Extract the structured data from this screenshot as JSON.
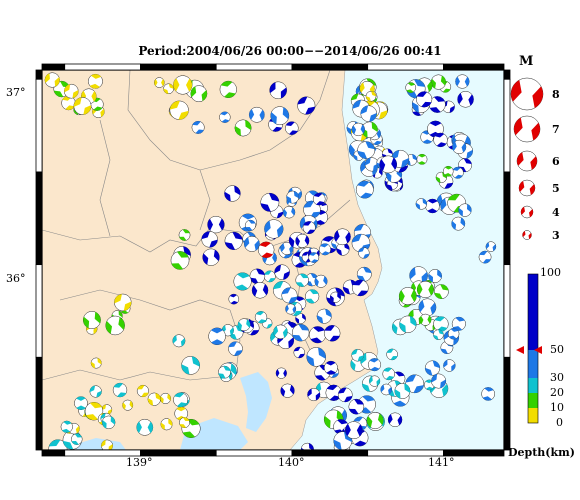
{
  "title": "Period:2004/06/26 00:00−−2014/06/26 00:41",
  "colors": {
    "land": "#fbe7cc",
    "sea": "#e6fbff",
    "bay": "#bfe6ff",
    "depth_0_10": "#f2dd00",
    "depth_10_20": "#35d100",
    "depth_20_30": "#10c2cf",
    "depth_30_50": "#1e78e6",
    "depth_50_100": "#0000c8",
    "magnitude_legend": "#e00000"
  },
  "axes": {
    "lon_ticks": [
      "139°",
      "140°",
      "141°"
    ],
    "lat_ticks": [
      "37°",
      "36°"
    ]
  },
  "magnitude_legend": {
    "header": "M",
    "labels": [
      "8",
      "7",
      "6",
      "5",
      "4",
      "3"
    ]
  },
  "depth_legend": {
    "ticks": [
      "100",
      "50",
      "30",
      "20",
      "10",
      "0"
    ],
    "unit": "Depth(km)"
  },
  "chart_data": {
    "type": "scatter",
    "title": "Period:2004/06/26 00:00−−2014/06/26 00:41",
    "xlabel": "",
    "ylabel": "",
    "xlim": [
      138.35,
      141.4
    ],
    "ylim": [
      35.0,
      37.05
    ],
    "x_ticks": [
      139,
      140,
      141
    ],
    "y_ticks": [
      36,
      37
    ],
    "depth_bins_km": [
      0,
      10,
      20,
      30,
      50,
      100
    ],
    "magnitude_scale": [
      3,
      4,
      5,
      6,
      7,
      8
    ],
    "highlight_event": {
      "lon": 139.83,
      "lat": 36.08
    },
    "clusters": [
      {
        "lon": 140.5,
        "lat": 36.75,
        "count": 26,
        "spread": [
          0.12,
          0.22
        ],
        "depths": [
          5,
          15,
          40
        ]
      },
      {
        "lon": 140.95,
        "lat": 36.75,
        "count": 22,
        "spread": [
          0.2,
          0.25
        ],
        "depths": [
          40,
          70,
          15
        ]
      },
      {
        "lon": 140.6,
        "lat": 36.5,
        "count": 18,
        "spread": [
          0.12,
          0.12
        ],
        "depths": [
          70,
          40
        ]
      },
      {
        "lon": 140.95,
        "lat": 36.45,
        "count": 10,
        "spread": [
          0.2,
          0.15
        ],
        "depths": [
          40,
          15,
          70
        ]
      },
      {
        "lon": 138.6,
        "lat": 36.9,
        "count": 10,
        "spread": [
          0.2,
          0.12
        ],
        "depths": [
          5,
          15
        ]
      },
      {
        "lon": 139.4,
        "lat": 36.85,
        "count": 12,
        "spread": [
          0.3,
          0.15
        ],
        "depths": [
          5,
          15,
          40
        ]
      },
      {
        "lon": 139.95,
        "lat": 36.85,
        "count": 6,
        "spread": [
          0.25,
          0.12
        ],
        "depths": [
          70,
          40
        ]
      },
      {
        "lon": 139.9,
        "lat": 36.2,
        "count": 30,
        "spread": [
          0.3,
          0.2
        ],
        "depths": [
          70,
          40
        ]
      },
      {
        "lon": 140.3,
        "lat": 36.05,
        "count": 18,
        "spread": [
          0.2,
          0.18
        ],
        "depths": [
          70,
          40
        ]
      },
      {
        "lon": 139.85,
        "lat": 35.8,
        "count": 18,
        "spread": [
          0.25,
          0.2
        ],
        "depths": [
          70,
          25
        ]
      },
      {
        "lon": 140.1,
        "lat": 35.55,
        "count": 24,
        "spread": [
          0.2,
          0.3
        ],
        "depths": [
          40,
          70,
          25
        ]
      },
      {
        "lon": 140.5,
        "lat": 35.35,
        "count": 16,
        "spread": [
          0.25,
          0.2
        ],
        "depths": [
          40,
          25,
          70
        ]
      },
      {
        "lon": 140.9,
        "lat": 35.8,
        "count": 14,
        "spread": [
          0.15,
          0.15
        ],
        "depths": [
          15,
          40
        ]
      },
      {
        "lon": 140.8,
        "lat": 35.5,
        "count": 12,
        "spread": [
          0.2,
          0.2
        ],
        "depths": [
          40,
          25
        ]
      },
      {
        "lon": 139.5,
        "lat": 35.55,
        "count": 10,
        "spread": [
          0.25,
          0.15
        ],
        "depths": [
          40,
          25
        ]
      },
      {
        "lon": 138.85,
        "lat": 35.35,
        "count": 12,
        "spread": [
          0.25,
          0.15
        ],
        "depths": [
          15,
          25,
          5
        ]
      },
      {
        "lon": 138.6,
        "lat": 35.1,
        "count": 10,
        "spread": [
          0.2,
          0.1
        ],
        "depths": [
          15,
          5,
          25
        ]
      },
      {
        "lon": 139.2,
        "lat": 35.2,
        "count": 8,
        "spread": [
          0.2,
          0.1
        ],
        "depths": [
          15,
          25,
          5
        ]
      },
      {
        "lon": 139.3,
        "lat": 36.1,
        "count": 6,
        "spread": [
          0.3,
          0.15
        ],
        "depths": [
          15,
          70
        ]
      },
      {
        "lon": 138.75,
        "lat": 35.75,
        "count": 6,
        "spread": [
          0.15,
          0.1
        ],
        "depths": [
          5,
          15
        ]
      },
      {
        "lon": 140.35,
        "lat": 35.1,
        "count": 10,
        "spread": [
          0.25,
          0.1
        ],
        "depths": [
          70,
          40,
          15
        ]
      },
      {
        "lon": 141.15,
        "lat": 35.5,
        "count": 6,
        "spread": [
          0.15,
          0.2
        ],
        "depths": [
          40
        ]
      },
      {
        "lon": 141.2,
        "lat": 36.15,
        "count": 4,
        "spread": [
          0.15,
          0.15
        ],
        "depths": [
          40
        ]
      }
    ]
  }
}
